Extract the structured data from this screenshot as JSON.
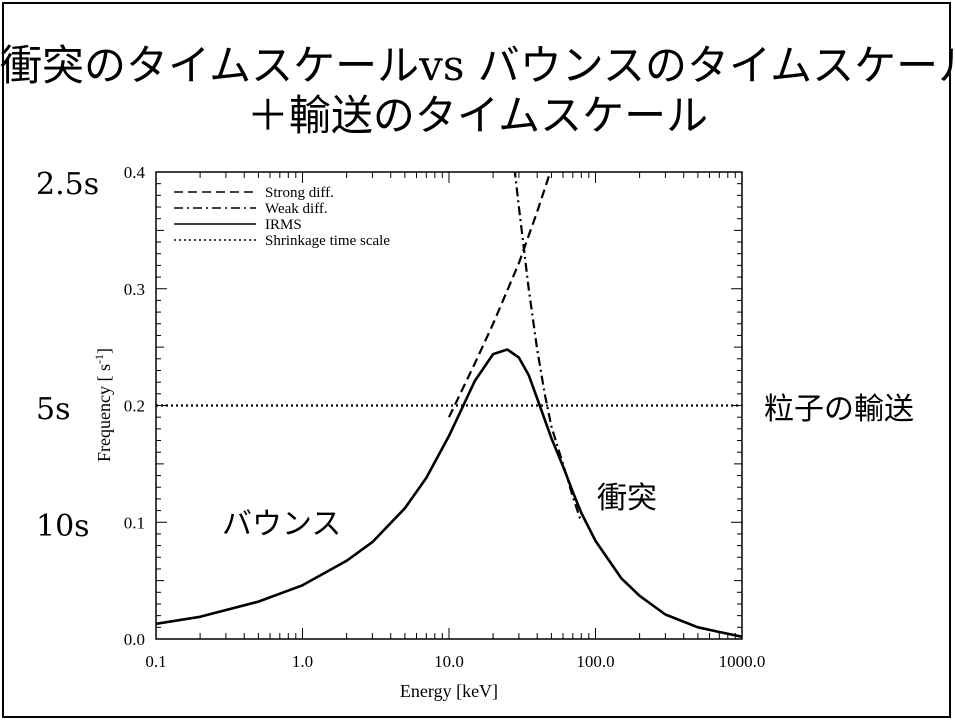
{
  "slide": {
    "title_line1": "衝突のタイムスケールvs バウンスのタイムスケール",
    "title_line2": "＋輸送のタイムスケール",
    "left_labels": [
      "2.5s",
      "5s",
      "10s"
    ],
    "right_label": "粒子の輸送",
    "annotation_bounce": "バウンス",
    "annotation_collision": "衝突"
  },
  "chart_data": {
    "type": "line",
    "xlabel": "Energy [keV]",
    "ylabel_main": "Frequency [ s",
    "ylabel_sup": "-1",
    "ylabel_tail": "]",
    "xscale": "log",
    "xlim": [
      0.1,
      1000
    ],
    "ylim": [
      0,
      0.4
    ],
    "xticks": [
      0.1,
      1,
      10,
      100,
      1000
    ],
    "xtick_labels": [
      "0.1",
      "1.0",
      "10.0",
      "100.0",
      "1000.0"
    ],
    "yticks": [
      0,
      0.1,
      0.2,
      0.3,
      0.4
    ],
    "ytick_labels": [
      "0.0",
      "0.1",
      "0.2",
      "0.3",
      "0.4"
    ],
    "legend_position": "top-left",
    "series": [
      {
        "name": "Strong diff.",
        "style": "dashed",
        "x": [
          10,
          15,
          20,
          30,
          40,
          50
        ],
        "y": [
          0.19,
          0.236,
          0.27,
          0.322,
          0.366,
          0.403
        ]
      },
      {
        "name": "Weak diff.",
        "style": "dashdot",
        "x": [
          28,
          30,
          35,
          40,
          45,
          50,
          60,
          70,
          80
        ],
        "y": [
          0.403,
          0.37,
          0.3,
          0.248,
          0.21,
          0.182,
          0.15,
          0.122,
          0.1
        ]
      },
      {
        "name": "IRMS",
        "style": "solid",
        "x": [
          0.1,
          0.2,
          0.5,
          1,
          2,
          3,
          5,
          7,
          10,
          12,
          15,
          20,
          25,
          30,
          35,
          40,
          50,
          60,
          70,
          80,
          100,
          150,
          200,
          300,
          500,
          700,
          1000
        ],
        "y": [
          0.013,
          0.019,
          0.032,
          0.046,
          0.067,
          0.083,
          0.112,
          0.138,
          0.174,
          0.195,
          0.221,
          0.244,
          0.248,
          0.241,
          0.226,
          0.206,
          0.172,
          0.148,
          0.126,
          0.108,
          0.084,
          0.052,
          0.037,
          0.021,
          0.01,
          0.006,
          0.002
        ]
      },
      {
        "name": "Shrinkage time scale",
        "style": "dotted",
        "x": [
          0.1,
          1000
        ],
        "y": [
          0.2,
          0.2
        ]
      }
    ]
  }
}
